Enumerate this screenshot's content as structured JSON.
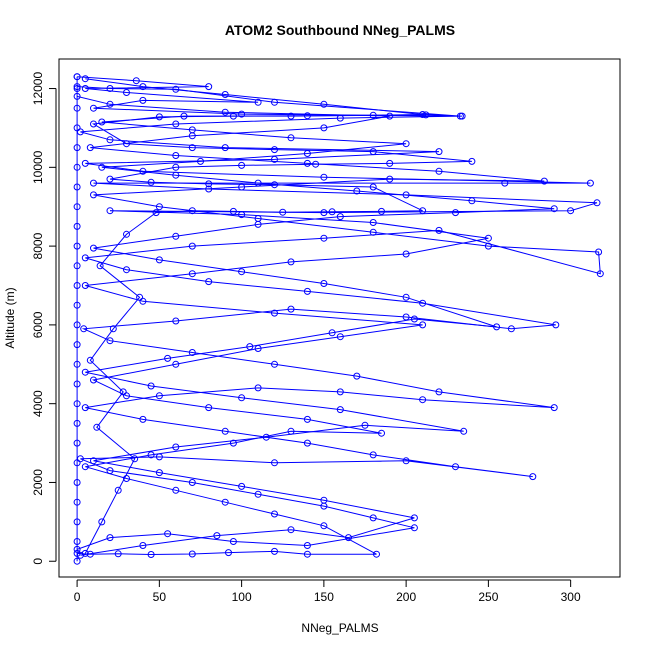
{
  "chart_data": {
    "type": "line",
    "title": "ATOM2 Southbound NNeg_PALMS",
    "xlabel": "NNeg_PALMS",
    "ylabel": "Altitude (m)",
    "xlim": [
      -11,
      330
    ],
    "ylim": [
      -400,
      12750
    ],
    "x_ticks": [
      0,
      50,
      100,
      150,
      200,
      250,
      300
    ],
    "y_ticks": [
      0,
      2000,
      4000,
      6000,
      8000,
      10000,
      12000
    ],
    "grid": false,
    "legend": "none",
    "series_color": "#0000ff",
    "series": [
      {
        "marker": "open-circle",
        "points": [
          [
            0,
            200
          ],
          [
            8,
            180
          ],
          [
            25,
            190
          ],
          [
            45,
            170
          ],
          [
            70,
            185
          ],
          [
            92,
            220
          ],
          [
            120,
            250
          ],
          [
            140,
            180
          ],
          [
            182,
            180
          ],
          [
            150,
            900
          ],
          [
            120,
            1200
          ],
          [
            90,
            1500
          ],
          [
            60,
            1800
          ],
          [
            30,
            2100
          ],
          [
            5,
            2400
          ],
          [
            45,
            2700
          ],
          [
            95,
            3000
          ],
          [
            130,
            3300
          ],
          [
            185,
            3250
          ],
          [
            140,
            3600
          ],
          [
            80,
            3900
          ],
          [
            30,
            4200
          ],
          [
            10,
            4600
          ],
          [
            60,
            5000
          ],
          [
            110,
            5400
          ],
          [
            160,
            5700
          ],
          [
            210,
            6000
          ],
          [
            120,
            6300
          ],
          [
            40,
            6600
          ],
          [
            5,
            7000
          ],
          [
            70,
            7300
          ],
          [
            130,
            7600
          ],
          [
            200,
            7800
          ],
          [
            250,
            8200
          ],
          [
            180,
            8600
          ],
          [
            100,
            8800
          ],
          [
            20,
            8900
          ],
          [
            150,
            8850
          ],
          [
            300,
            8900
          ],
          [
            316,
            9100
          ],
          [
            200,
            9300
          ],
          [
            80,
            9450
          ],
          [
            10,
            9600
          ],
          [
            260,
            9600
          ],
          [
            312,
            9600
          ],
          [
            150,
            9750
          ],
          [
            40,
            9900
          ],
          [
            5,
            10100
          ],
          [
            120,
            10200
          ],
          [
            220,
            10400
          ],
          [
            90,
            10500
          ],
          [
            20,
            10700
          ],
          [
            2,
            10900
          ],
          [
            60,
            11100
          ],
          [
            160,
            11250
          ],
          [
            234,
            11300
          ],
          [
            100,
            11350
          ],
          [
            10,
            11500
          ],
          [
            40,
            11700
          ],
          [
            110,
            11650
          ],
          [
            30,
            11900
          ],
          [
            5,
            12000
          ],
          [
            80,
            12050
          ],
          [
            36,
            12200
          ],
          [
            0,
            12300
          ]
        ]
      },
      {
        "marker": "open-circle",
        "points": [
          [
            0,
            300
          ],
          [
            20,
            600
          ],
          [
            55,
            700
          ],
          [
            95,
            500
          ],
          [
            140,
            400
          ],
          [
            205,
            850
          ],
          [
            180,
            1100
          ],
          [
            150,
            1400
          ],
          [
            110,
            1700
          ],
          [
            70,
            2000
          ],
          [
            20,
            2300
          ],
          [
            2,
            2600
          ],
          [
            50,
            2650
          ],
          [
            120,
            2500
          ],
          [
            200,
            2550
          ],
          [
            277,
            2150
          ],
          [
            230,
            2400
          ],
          [
            180,
            2700
          ],
          [
            140,
            3000
          ],
          [
            90,
            3300
          ],
          [
            40,
            3600
          ],
          [
            5,
            3900
          ],
          [
            50,
            4200
          ],
          [
            110,
            4400
          ],
          [
            160,
            4300
          ],
          [
            210,
            4100
          ],
          [
            290,
            3900
          ],
          [
            220,
            4300
          ],
          [
            170,
            4700
          ],
          [
            120,
            5000
          ],
          [
            70,
            5300
          ],
          [
            20,
            5600
          ],
          [
            4,
            5900
          ],
          [
            60,
            6100
          ],
          [
            130,
            6400
          ],
          [
            200,
            6200
          ],
          [
            264,
            5900
          ],
          [
            291,
            6000
          ],
          [
            210,
            6550
          ],
          [
            140,
            6850
          ],
          [
            80,
            7100
          ],
          [
            30,
            7400
          ],
          [
            5,
            7700
          ],
          [
            70,
            8000
          ],
          [
            150,
            8200
          ],
          [
            220,
            8400
          ],
          [
            318,
            7300
          ],
          [
            317,
            7850
          ],
          [
            250,
            8000
          ],
          [
            180,
            8350
          ],
          [
            110,
            8700
          ],
          [
            50,
            9000
          ],
          [
            10,
            9300
          ],
          [
            100,
            9500
          ],
          [
            190,
            9700
          ],
          [
            284,
            9650
          ],
          [
            220,
            9900
          ],
          [
            140,
            10100
          ],
          [
            60,
            10300
          ],
          [
            8,
            10500
          ],
          [
            70,
            10800
          ],
          [
            150,
            11000
          ],
          [
            190,
            11300
          ],
          [
            90,
            11400
          ],
          [
            20,
            11600
          ],
          [
            0,
            11800
          ]
        ]
      },
      {
        "marker": "open-circle",
        "points": [
          [
            2,
            150
          ],
          [
            40,
            400
          ],
          [
            85,
            650
          ],
          [
            130,
            800
          ],
          [
            165,
            600
          ],
          [
            205,
            1100
          ],
          [
            150,
            1550
          ],
          [
            100,
            1900
          ],
          [
            50,
            2250
          ],
          [
            10,
            2550
          ],
          [
            60,
            2900
          ],
          [
            115,
            3150
          ],
          [
            175,
            3450
          ],
          [
            235,
            3300
          ],
          [
            160,
            3850
          ],
          [
            100,
            4150
          ],
          [
            45,
            4450
          ],
          [
            5,
            4800
          ],
          [
            55,
            5150
          ],
          [
            105,
            5450
          ],
          [
            155,
            5800
          ],
          [
            205,
            6150
          ],
          [
            255,
            5950
          ],
          [
            200,
            6700
          ],
          [
            150,
            7050
          ],
          [
            100,
            7350
          ],
          [
            50,
            7650
          ],
          [
            10,
            7950
          ],
          [
            60,
            8250
          ],
          [
            110,
            8550
          ],
          [
            160,
            8750
          ],
          [
            230,
            8850
          ],
          [
            290,
            8950
          ],
          [
            240,
            9150
          ],
          [
            170,
            9400
          ],
          [
            110,
            9600
          ],
          [
            60,
            9800
          ],
          [
            15,
            10000
          ],
          [
            75,
            10150
          ],
          [
            140,
            10350
          ],
          [
            200,
            10600
          ],
          [
            130,
            10750
          ],
          [
            70,
            10950
          ],
          [
            15,
            11150
          ],
          [
            65,
            11300
          ],
          [
            130,
            11300
          ],
          [
            212,
            11330
          ],
          [
            150,
            11600
          ],
          [
            90,
            11850
          ],
          [
            40,
            12050
          ],
          [
            5,
            12250
          ]
        ]
      },
      {
        "marker": "open-circle",
        "points": [
          [
            0,
            0
          ],
          [
            0,
            500
          ],
          [
            0,
            1000
          ],
          [
            0,
            1500
          ],
          [
            0,
            2000
          ],
          [
            0,
            2500
          ],
          [
            0,
            3000
          ],
          [
            0,
            3500
          ],
          [
            0,
            4000
          ],
          [
            0,
            4500
          ],
          [
            0,
            5000
          ],
          [
            0,
            5500
          ],
          [
            0,
            6000
          ],
          [
            0,
            6500
          ],
          [
            0,
            7000
          ],
          [
            0,
            7500
          ],
          [
            0,
            8000
          ],
          [
            0,
            8500
          ],
          [
            0,
            9000
          ],
          [
            0,
            9500
          ],
          [
            0,
            10000
          ],
          [
            0,
            10500
          ],
          [
            0,
            11000
          ],
          [
            0,
            11500
          ],
          [
            0,
            12000
          ],
          [
            0,
            12300
          ]
        ]
      },
      {
        "marker": "open-circle",
        "points": [
          [
            5,
            200
          ],
          [
            15,
            1000
          ],
          [
            25,
            1800
          ],
          [
            35,
            2600
          ],
          [
            12,
            3400
          ],
          [
            28,
            4300
          ],
          [
            8,
            5100
          ],
          [
            22,
            5900
          ],
          [
            38,
            6700
          ],
          [
            14,
            7500
          ],
          [
            30,
            8300
          ],
          [
            48,
            8850
          ],
          [
            70,
            8900
          ],
          [
            95,
            8880
          ],
          [
            125,
            8860
          ],
          [
            155,
            8870
          ],
          [
            185,
            8880
          ],
          [
            210,
            8900
          ],
          [
            180,
            9500
          ],
          [
            120,
            9560
          ],
          [
            80,
            9580
          ],
          [
            45,
            9620
          ],
          [
            20,
            9700
          ],
          [
            60,
            10000
          ],
          [
            100,
            10050
          ],
          [
            145,
            10080
          ],
          [
            190,
            10100
          ],
          [
            240,
            10150
          ],
          [
            180,
            10400
          ],
          [
            120,
            10450
          ],
          [
            70,
            10500
          ],
          [
            30,
            10600
          ],
          [
            10,
            11100
          ],
          [
            50,
            11280
          ],
          [
            95,
            11300
          ],
          [
            140,
            11310
          ],
          [
            180,
            11320
          ],
          [
            210,
            11340
          ],
          [
            233,
            11300
          ],
          [
            120,
            11650
          ],
          [
            60,
            11980
          ],
          [
            20,
            12000
          ],
          [
            0,
            12050
          ]
        ]
      }
    ]
  }
}
